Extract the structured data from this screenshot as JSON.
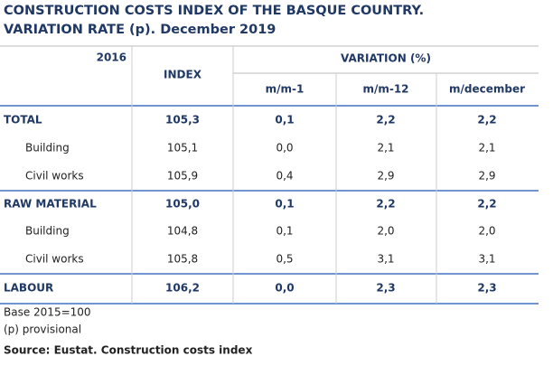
{
  "title": [
    "CONSTRUCTION  COSTS INDEX OF THE  BASQUE COUNTRY.",
    "VARIATION RATE (p). December 2019"
  ],
  "table": {
    "header": {
      "year": "2016",
      "index": "INDEX",
      "variation": "VARIATION (%)",
      "subcolumns": [
        "m/m-1",
        "m/m-12",
        "m/december"
      ]
    },
    "rows": [
      [
        "TOTAL",
        "105,3",
        "0,1",
        "2,2",
        "2,2"
      ],
      [
        "Building",
        "105,1",
        "0,0",
        "2,1",
        "2,1"
      ],
      [
        "Civil works",
        "105,9",
        "0,4",
        "2,9",
        "2,9"
      ],
      [
        "RAW MATERIAL",
        "105,0",
        "0,1",
        "2,2",
        "2,2"
      ],
      [
        "Building",
        "104,8",
        "0,1",
        "2,0",
        "2,0"
      ],
      [
        "Civil works",
        "105,8",
        "0,5",
        "3,1",
        "3,1"
      ],
      [
        "LABOUR",
        "106,2",
        "0,0",
        "2,3",
        "2,3"
      ]
    ]
  },
  "notes": [
    "Base 2015=100",
    "(p) provisional"
  ],
  "source": "Source: Eustat. Construction costs index"
}
